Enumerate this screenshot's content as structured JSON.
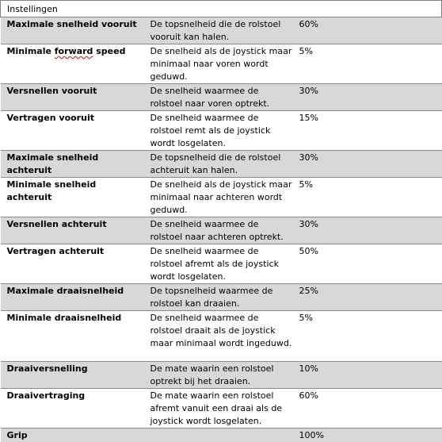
{
  "table": {
    "header": "Instellingen",
    "rows": [
      {
        "name": "Maximale snelheid vooruit",
        "desc": "De topsnelheid die de rolstoel vooruit kan halen.",
        "value": "60%"
      },
      {
        "name_pre": "Minimale ",
        "name_wavy": "forward",
        "name_post": " speed",
        "desc": "De snelheid als de joystick maar minimaal naar voren wordt geduwd.",
        "value": "5%"
      },
      {
        "name": "Versnellen vooruit",
        "desc": "De snelheid waarmee de rolstoel naar voren optrekt.",
        "value": "30%"
      },
      {
        "name": "Vertragen vooruit",
        "desc": "De snelheid waarmee de rolstoel remt als de joystick wordt losgelaten.",
        "value": "15%"
      },
      {
        "name": "Maximale snelheid achteruit",
        "desc": "De topsnelheid die de rolstoel achteruit kan halen.",
        "value": "30%"
      },
      {
        "name": "Minimale snelheid achteruit",
        "desc": "De snelheid als de joystick maar minimaal naar achteren wordt geduwd.",
        "value": "5%"
      },
      {
        "name": "Versnellen achteruit",
        "desc": "De snelheid waarmee de rolstoel naar achteren optrekt.",
        "value": "30%"
      },
      {
        "name": "Vertragen achteruit",
        "desc": "De snelheid waarmee de rolstoel afremt als de joystick wordt losgelaten.",
        "value": "50%"
      },
      {
        "name": "Maximale draaisnelheid",
        "desc": "De topsnelheid waarmee de rolstoel kan draaien.",
        "value": "25%"
      },
      {
        "name": "Minimale draaisnelheid",
        "desc": "De snelheid waarmee de rolstoel draait als de joystick maar minimaal wordt ingeduwd.",
        "value": "5%"
      },
      {
        "name": "Draaiversnelling",
        "desc": "De mate waarin een rolstoel optrekt bij het draaien.",
        "value": "10%"
      },
      {
        "name": "Draaivertraging",
        "desc": "De mate waarin een rolstoel afremt vanuit een draai als de joystick wordt losgelaten.",
        "value": "60%"
      },
      {
        "name": "Grip",
        "desc": "",
        "value": "100%"
      }
    ]
  }
}
